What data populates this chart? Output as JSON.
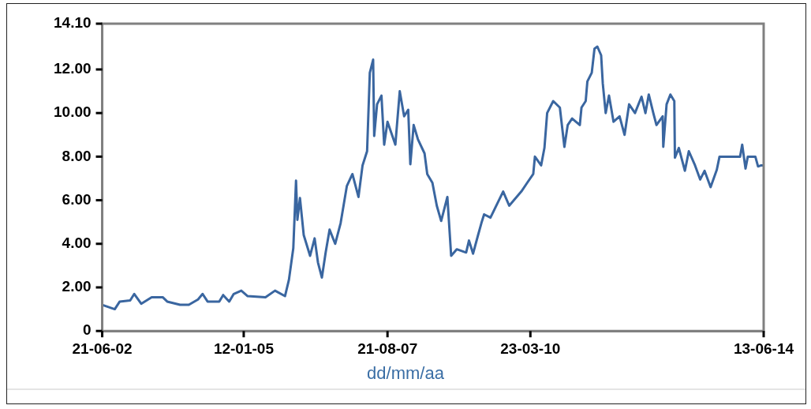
{
  "chart_data": {
    "type": "line",
    "xlabel": "dd/mm/aa",
    "grid": false,
    "legend": false,
    "marker": "none",
    "line_style": "solid",
    "xlim": [
      "2002-06-21",
      "2014-06-13"
    ],
    "xticks": [
      {
        "value": "2002-06-21",
        "label": "21-06-02"
      },
      {
        "value": "2005-01-12",
        "label": "12-01-05"
      },
      {
        "value": "2007-08-21",
        "label": "21-08-07"
      },
      {
        "value": "2010-03-23",
        "label": "23-03-10"
      },
      {
        "value": "2014-06-13",
        "label": "13-06-14"
      }
    ],
    "ylim": [
      0,
      14.1
    ],
    "yticks": [
      0,
      {
        "value": 2,
        "label": "2.00"
      },
      {
        "value": 4,
        "label": "4.00"
      },
      {
        "value": 6,
        "label": "6.00"
      },
      {
        "value": 8,
        "label": "8.00"
      },
      {
        "value": 10,
        "label": "10.00"
      },
      {
        "value": 12,
        "label": "12.00"
      },
      {
        "value": 14.1,
        "label": "14.10"
      }
    ],
    "series": [
      {
        "color": "#3a66a0",
        "x": [
          "2002-06-21",
          "2002-09-12",
          "2002-10-15",
          "2002-12-23",
          "2003-01-19",
          "2003-03-06",
          "2003-05-14",
          "2003-07-26",
          "2003-08-25",
          "2003-11-18",
          "2004-01-15",
          "2004-03-16",
          "2004-04-15",
          "2004-05-18",
          "2004-08-03",
          "2004-08-29",
          "2004-10-08",
          "2004-11-07",
          "2004-12-27",
          "2005-02-07",
          "2005-06-05",
          "2005-08-07",
          "2005-10-12",
          "2005-11-07",
          "2005-12-06",
          "2005-12-24",
          "2006-01-02",
          "2006-01-19",
          "2006-02-13",
          "2006-03-27",
          "2006-04-26",
          "2006-05-18",
          "2006-06-13",
          "2006-07-08",
          "2006-08-03",
          "2006-09-09",
          "2006-10-15",
          "2006-11-25",
          "2007-01-01",
          "2007-02-10",
          "2007-03-09",
          "2007-04-08",
          "2007-04-26",
          "2007-05-18",
          "2007-05-25",
          "2007-06-13",
          "2007-07-12",
          "2007-07-30",
          "2007-08-21",
          "2007-10-12",
          "2007-11-10",
          "2007-12-09",
          "2008-01-05",
          "2008-01-19",
          "2008-02-10",
          "2008-03-09",
          "2008-04-22",
          "2008-05-10",
          "2008-06-13",
          "2008-07-12",
          "2008-08-10",
          "2008-09-20",
          "2008-10-15",
          "2008-11-21",
          "2009-01-22",
          "2009-02-10",
          "2009-03-09",
          "2009-04-11",
          "2009-05-03",
          "2009-05-21",
          "2009-07-02",
          "2009-09-24",
          "2009-11-03",
          "2010-01-22",
          "2010-03-02",
          "2010-04-11",
          "2010-04-22",
          "2010-06-02",
          "2010-06-24",
          "2010-07-12",
          "2010-08-21",
          "2010-10-04",
          "2010-11-03",
          "2010-11-25",
          "2010-12-24",
          "2011-02-13",
          "2011-02-24",
          "2011-03-24",
          "2011-04-04",
          "2011-05-03",
          "2011-05-21",
          "2011-06-09",
          "2011-07-04",
          "2011-07-15",
          "2011-08-03",
          "2011-08-25",
          "2011-09-24",
          "2011-11-03",
          "2011-12-06",
          "2012-01-05",
          "2012-02-13",
          "2012-03-27",
          "2012-04-22",
          "2012-05-14",
          "2012-06-13",
          "2012-07-04",
          "2012-08-14",
          "2012-08-18",
          "2012-09-09",
          "2012-10-04",
          "2012-10-30",
          "2012-11-03",
          "2012-11-29",
          "2013-01-08",
          "2013-02-03",
          "2013-03-16",
          "2013-04-19",
          "2013-05-18",
          "2013-06-27",
          "2013-08-07",
          "2013-08-25",
          "2014-01-08",
          "2014-01-22",
          "2014-02-13",
          "2014-02-28",
          "2014-04-19",
          "2014-05-07",
          "2014-05-28",
          "2014-06-13"
        ],
        "values": [
          1.2,
          1.0,
          1.35,
          1.4,
          1.7,
          1.25,
          1.55,
          1.55,
          1.35,
          1.2,
          1.2,
          1.45,
          1.7,
          1.35,
          1.35,
          1.65,
          1.35,
          1.7,
          1.85,
          1.6,
          1.55,
          1.85,
          1.6,
          2.35,
          3.8,
          6.9,
          5.1,
          6.1,
          4.4,
          3.45,
          4.25,
          3.15,
          2.45,
          3.6,
          4.65,
          4.0,
          4.95,
          6.65,
          7.2,
          6.15,
          7.6,
          8.25,
          11.85,
          12.45,
          8.95,
          10.4,
          10.8,
          8.55,
          9.6,
          8.55,
          11.0,
          9.85,
          10.15,
          7.65,
          9.45,
          8.8,
          8.15,
          7.2,
          6.8,
          5.75,
          5.05,
          6.15,
          3.45,
          3.75,
          3.6,
          4.15,
          3.55,
          4.4,
          4.95,
          5.35,
          5.2,
          6.4,
          5.75,
          6.4,
          6.8,
          7.2,
          8.0,
          7.6,
          8.4,
          10.0,
          10.55,
          10.25,
          8.45,
          9.45,
          9.75,
          9.45,
          10.25,
          10.55,
          11.45,
          11.85,
          12.95,
          13.05,
          12.65,
          11.35,
          10.0,
          10.8,
          9.6,
          9.85,
          9.0,
          10.4,
          10.0,
          10.75,
          10.0,
          10.85,
          10.0,
          9.45,
          9.85,
          8.45,
          10.4,
          10.85,
          10.55,
          7.95,
          8.4,
          7.35,
          8.25,
          7.6,
          6.95,
          7.35,
          6.6,
          7.4,
          8.0,
          8.0,
          8.55,
          7.45,
          8.0,
          8.0,
          7.55,
          7.6,
          7.6
        ]
      }
    ]
  }
}
